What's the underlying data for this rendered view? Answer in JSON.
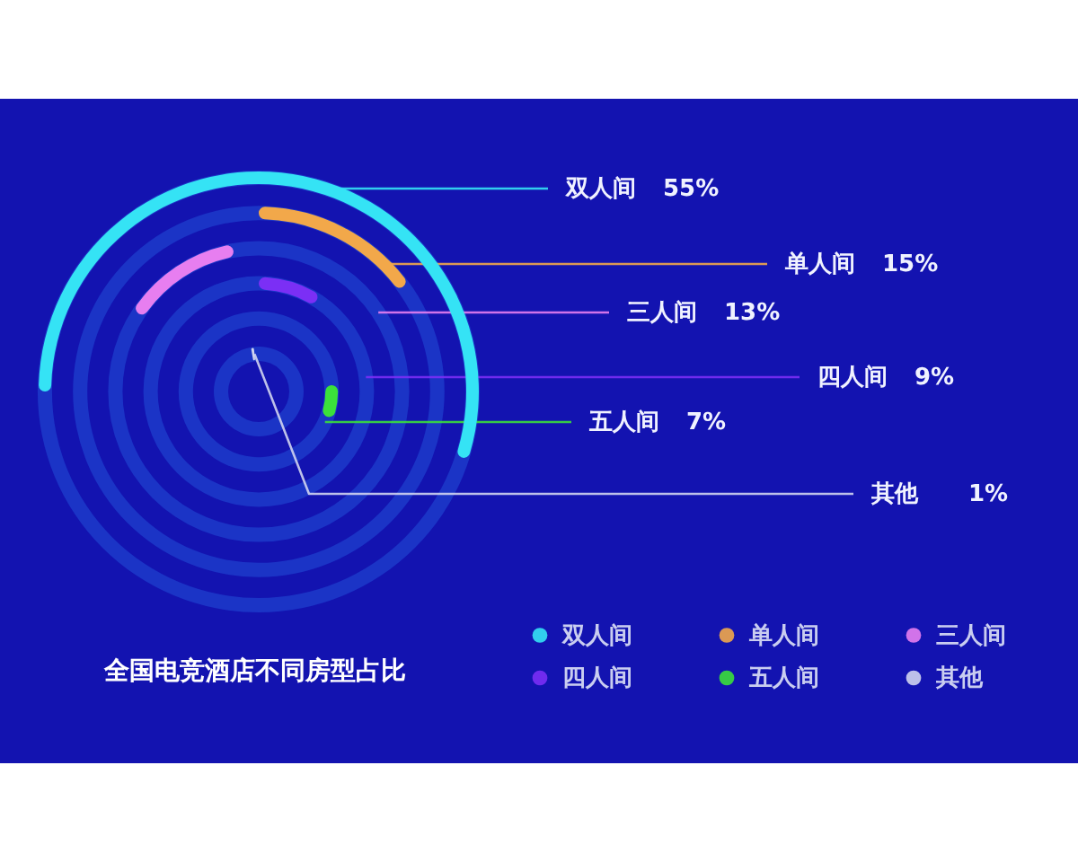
{
  "chart_data": {
    "type": "other",
    "title": "全国电竞酒店不同房型占比",
    "series": [
      {
        "name": "双人间",
        "color": "#35e3f5",
        "values": [
          55
        ],
        "value_labels": [
          "55%"
        ]
      },
      {
        "name": "单人间",
        "color": "#f2a84a",
        "values": [
          15
        ],
        "value_labels": [
          "15%"
        ]
      },
      {
        "name": "三人间",
        "color": "#e77ef0",
        "values": [
          13
        ],
        "value_labels": [
          "13%"
        ]
      },
      {
        "name": "四人间",
        "color": "#7b2ff5",
        "values": [
          9
        ],
        "value_labels": [
          "9%"
        ]
      },
      {
        "name": "五人间",
        "color": "#3be03b",
        "values": [
          7
        ],
        "value_labels": [
          "7%"
        ]
      },
      {
        "name": "其他",
        "color": "#d0d4f0",
        "values": [
          1
        ],
        "value_labels": [
          "1%"
        ]
      }
    ],
    "legend": "bottom right"
  }
}
